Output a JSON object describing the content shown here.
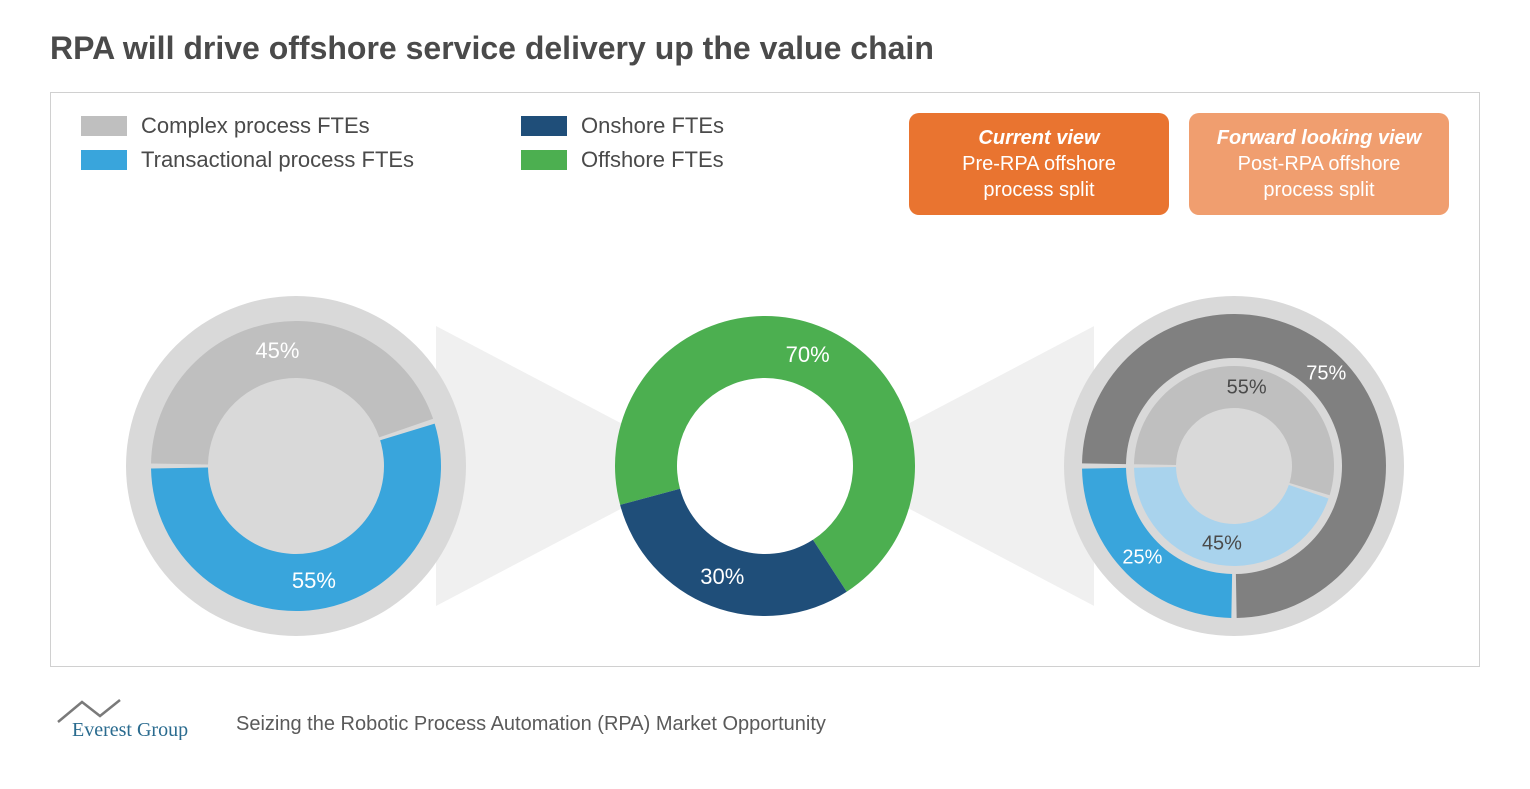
{
  "title": "RPA will drive offshore service delivery up the value chain",
  "colors": {
    "grey": "#bfbfbf",
    "darkgrey": "#808080",
    "blue": "#39a5dc",
    "lightblue": "#a9d3ed",
    "navy": "#1f4e79",
    "green": "#4caf50",
    "orange_dark": "#e97430",
    "orange_light": "#f09e6f",
    "text": "#4a4a4a",
    "border": "#d0d0d0",
    "bg_circle": "#d9d9d9"
  },
  "legend1": [
    {
      "label": "Complex process FTEs",
      "color": "#bfbfbf"
    },
    {
      "label": "Transactional process FTEs",
      "color": "#39a5dc"
    }
  ],
  "legend2": [
    {
      "label": "Onshore FTEs",
      "color": "#1f4e79"
    },
    {
      "label": "Offshore FTEs",
      "color": "#4caf50"
    }
  ],
  "badges": [
    {
      "title": "Current view",
      "sub": "Pre-RPA offshore process split",
      "bg": "#e97430"
    },
    {
      "title": "Forward looking view",
      "sub": "Post-RPA offshore process split",
      "bg": "#f09e6f"
    }
  ],
  "chart_left": {
    "type": "donut",
    "size": 340,
    "outer_bg_radius": 170,
    "ring_outer": 145,
    "ring_inner": 88,
    "bg_color": "#d9d9d9",
    "slices": [
      {
        "value": 45,
        "color": "#bfbfbf",
        "label": "45%",
        "label_color": "#ffffff"
      },
      {
        "value": 55,
        "color": "#39a5dc",
        "label": "55%",
        "label_color": "#ffffff"
      }
    ],
    "start_angle_deg": -90,
    "gap_deg": 2
  },
  "chart_center": {
    "type": "donut",
    "size": 300,
    "ring_outer": 150,
    "ring_inner": 88,
    "slices": [
      {
        "value": 70,
        "color": "#4caf50",
        "label": "70%",
        "label_color": "#ffffff"
      },
      {
        "value": 30,
        "color": "#1f4e79",
        "label": "30%",
        "label_color": "#ffffff"
      }
    ],
    "start_angle_deg": -105,
    "gap_deg": 0
  },
  "chart_right": {
    "type": "nested_donut",
    "size": 340,
    "outer_bg_radius": 170,
    "bg_color": "#d9d9d9",
    "outer": {
      "ring_outer": 152,
      "ring_inner": 108,
      "slices": [
        {
          "value": 75,
          "color": "#808080",
          "label": "75%",
          "label_color": "#ffffff"
        },
        {
          "value": 25,
          "color": "#39a5dc",
          "label": "25%",
          "label_color": "#ffffff"
        }
      ],
      "start_angle_deg": -90,
      "gap_deg": 2
    },
    "inner": {
      "ring_outer": 100,
      "ring_inner": 58,
      "slices": [
        {
          "value": 55,
          "color": "#bfbfbf",
          "label": "55%",
          "label_color": "#4a4a4a"
        },
        {
          "value": 45,
          "color": "#a9d3ed",
          "label": "45%",
          "label_color": "#4a4a4a"
        }
      ],
      "start_angle_deg": -90,
      "gap_deg": 2
    }
  },
  "footer": {
    "logo_text": "Everest Group",
    "logo_color": "#2a6b8f",
    "caption": "Seizing the Robotic Process Automation (RPA) Market Opportunity"
  }
}
